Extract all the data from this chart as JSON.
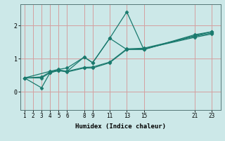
{
  "bg_color": "#cce8e8",
  "line_color": "#1a7a6e",
  "grid_color": "#d4a0a0",
  "xlabel": "Humidex (Indice chaleur)",
  "xlim": [
    0.5,
    24
  ],
  "ylim": [
    -0.55,
    2.65
  ],
  "yticks": [
    0,
    1,
    2
  ],
  "xticks": [
    1,
    2,
    3,
    4,
    5,
    6,
    8,
    9,
    11,
    13,
    15,
    21,
    23
  ],
  "series": [
    {
      "x": [
        1,
        3,
        4,
        5,
        6,
        8,
        9,
        11,
        13,
        15,
        21,
        23
      ],
      "y": [
        0.42,
        0.12,
        0.58,
        0.65,
        0.62,
        1.05,
        0.88,
        1.62,
        1.28,
        1.28,
        1.73,
        1.82
      ]
    },
    {
      "x": [
        1,
        3,
        4,
        5,
        6,
        8,
        9,
        11,
        13,
        15,
        21,
        23
      ],
      "y": [
        0.42,
        0.42,
        0.58,
        0.64,
        0.6,
        0.72,
        0.72,
        0.88,
        1.28,
        1.3,
        1.65,
        1.75
      ]
    },
    {
      "x": [
        1,
        3,
        4,
        5,
        6,
        8,
        9,
        11,
        13,
        15,
        21,
        23
      ],
      "y": [
        0.42,
        0.45,
        0.6,
        0.66,
        0.62,
        0.74,
        0.75,
        0.9,
        1.3,
        1.32,
        1.68,
        1.78
      ]
    },
    {
      "x": [
        1,
        4,
        5,
        6,
        8,
        9,
        11,
        13,
        15,
        21,
        23
      ],
      "y": [
        0.42,
        0.62,
        0.68,
        0.72,
        1.05,
        0.88,
        1.62,
        2.42,
        1.28,
        1.7,
        1.82
      ]
    }
  ],
  "marker": "D",
  "markersize": 2.5,
  "linewidth": 0.9,
  "tick_fontsize": 5.5,
  "xlabel_fontsize": 6.5
}
